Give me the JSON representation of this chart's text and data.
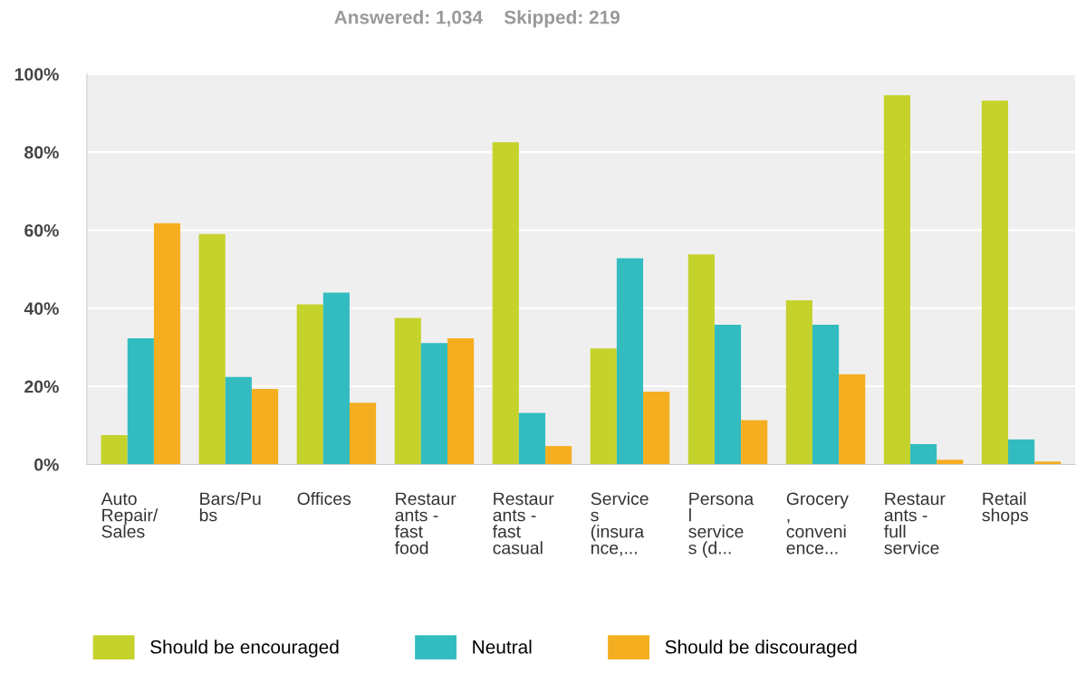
{
  "chart_data": {
    "type": "bar",
    "title": "Answered: 1,034    Skipped: 219",
    "categories": [
      "Auto\nRepair/\nSales",
      "Bars/Pu\nbs",
      "Offices",
      "Restaur\nants -\nfast\nfood",
      "Restaur\nants -\nfast\ncasual",
      "Service\ns\n(insura\nnce,...",
      "Persona\nl\nservice\ns (d...",
      "Grocery\n,\nconveni\nence...",
      "Restaur\nants -\nfull\nservice",
      "Retail\nshops"
    ],
    "series": [
      {
        "name": "Should be encouraged",
        "color": "#c5d22c",
        "values": [
          7.5,
          59,
          41,
          37.5,
          82.5,
          29.7,
          53.8,
          42,
          94.6,
          93.2
        ]
      },
      {
        "name": "Neutral",
        "color": "#33bcc0",
        "values": [
          32.3,
          22.4,
          44,
          31.1,
          13.2,
          52.8,
          35.8,
          35.8,
          5.2,
          6.4
        ]
      },
      {
        "name": "Should be discouraged",
        "color": "#f5ae20",
        "values": [
          61.8,
          19.3,
          15.8,
          32.3,
          4.7,
          18.6,
          11.3,
          23.1,
          1.2,
          0.7
        ]
      }
    ],
    "ylim": [
      0,
      100
    ],
    "yticks": [
      {
        "value": 0,
        "label": "0%"
      },
      {
        "value": 20,
        "label": "20%"
      },
      {
        "value": 40,
        "label": "40%"
      },
      {
        "value": 60,
        "label": "60%"
      },
      {
        "value": 80,
        "label": "80%"
      },
      {
        "value": 100,
        "label": "100%"
      }
    ],
    "grid": "y",
    "legend": "bottom"
  }
}
